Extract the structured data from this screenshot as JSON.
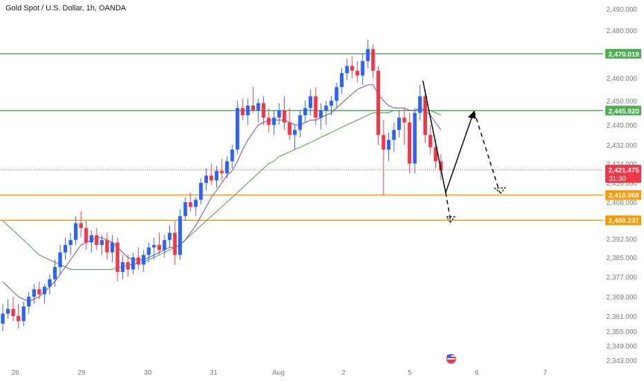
{
  "header": {
    "symbol_title": "Gold Spot / U.S. Dollar, 1h, OANDA"
  },
  "colors": {
    "bull": "#2962ff",
    "bear": "#f23645",
    "level_green": "#4caf50",
    "level_orange": "#ff9800",
    "ma_fast": "#7b3fb8",
    "ma_slow": "#43a047",
    "price_line": "#f23645",
    "axis_text": "#787b86"
  },
  "chart_data": {
    "type": "candlestick",
    "title": "Gold Spot / U.S. Dollar, 1h, OANDA",
    "x_ticks": [
      "26",
      "29",
      "30",
      "31",
      "Aug",
      "2",
      "5",
      "6",
      "7"
    ],
    "y_ticks": [
      "2,490.000",
      "2,480.000",
      "2,470.000",
      "2,460.000",
      "2,450.000",
      "2,440.000",
      "2,432.000",
      "2,424.000",
      "2,416.000",
      "2,408.000",
      "2,400.000",
      "2,392.500",
      "2,385.000",
      "2,377.000",
      "2,369.000",
      "2,361.000",
      "2,355.000",
      "2,349.000",
      "2,343.000"
    ],
    "y_tick_values": [
      2490,
      2480,
      2470,
      2460,
      2450,
      2440,
      2432,
      2424,
      2416,
      2408,
      2400,
      2392.5,
      2385,
      2377,
      2369,
      2361,
      2355,
      2349,
      2343
    ],
    "horizontal_levels": [
      {
        "label": "2,470.019",
        "value": 2470.019,
        "color": "green"
      },
      {
        "label": "2,445.920",
        "value": 2445.92,
        "color": "green"
      },
      {
        "label": "2,410.968",
        "value": 2410.968,
        "color": "orange"
      },
      {
        "label": "2,400.237",
        "value": 2400.237,
        "color": "orange"
      }
    ],
    "current_price": {
      "label": "2,421.475",
      "value": 2421.475,
      "countdown": "31:30"
    },
    "candles": [
      [
        2358,
        2366,
        2355,
        2362
      ],
      [
        2362,
        2368,
        2360,
        2364
      ],
      [
        2364,
        2369,
        2359,
        2361
      ],
      [
        2361,
        2366,
        2356,
        2359
      ],
      [
        2359,
        2367,
        2357,
        2365
      ],
      [
        2365,
        2371,
        2362,
        2369
      ],
      [
        2369,
        2374,
        2366,
        2372
      ],
      [
        2372,
        2375,
        2368,
        2370
      ],
      [
        2370,
        2374,
        2366,
        2373
      ],
      [
        2373,
        2378,
        2370,
        2376
      ],
      [
        2376,
        2384,
        2373,
        2381
      ],
      [
        2381,
        2390,
        2378,
        2387
      ],
      [
        2387,
        2393,
        2384,
        2390
      ],
      [
        2390,
        2395,
        2386,
        2392
      ],
      [
        2392,
        2402,
        2390,
        2399
      ],
      [
        2399,
        2404,
        2393,
        2397
      ],
      [
        2397,
        2400,
        2388,
        2391
      ],
      [
        2391,
        2396,
        2387,
        2394
      ],
      [
        2394,
        2397,
        2388,
        2390
      ],
      [
        2390,
        2394,
        2386,
        2392
      ],
      [
        2392,
        2395,
        2384,
        2387
      ],
      [
        2387,
        2394,
        2383,
        2391
      ],
      [
        2391,
        2393,
        2375,
        2379
      ],
      [
        2379,
        2386,
        2376,
        2383
      ],
      [
        2383,
        2386,
        2377,
        2380
      ],
      [
        2380,
        2387,
        2378,
        2385
      ],
      [
        2385,
        2389,
        2380,
        2382
      ],
      [
        2382,
        2388,
        2379,
        2386
      ],
      [
        2386,
        2391,
        2383,
        2389
      ],
      [
        2389,
        2393,
        2384,
        2390
      ],
      [
        2390,
        2395,
        2386,
        2388
      ],
      [
        2388,
        2394,
        2385,
        2392
      ],
      [
        2392,
        2398,
        2389,
        2395
      ],
      [
        2395,
        2400,
        2382,
        2386
      ],
      [
        2386,
        2405,
        2384,
        2402
      ],
      [
        2402,
        2410,
        2400,
        2408
      ],
      [
        2408,
        2412,
        2404,
        2406
      ],
      [
        2406,
        2410,
        2402,
        2409
      ],
      [
        2409,
        2418,
        2407,
        2416
      ],
      [
        2416,
        2422,
        2413,
        2419
      ],
      [
        2419,
        2424,
        2415,
        2417
      ],
      [
        2417,
        2423,
        2414,
        2421
      ],
      [
        2421,
        2426,
        2417,
        2420
      ],
      [
        2420,
        2427,
        2418,
        2425
      ],
      [
        2425,
        2432,
        2422,
        2430
      ],
      [
        2430,
        2450,
        2428,
        2447
      ],
      [
        2447,
        2451,
        2442,
        2444
      ],
      [
        2444,
        2451,
        2440,
        2448
      ],
      [
        2448,
        2456,
        2445,
        2446
      ],
      [
        2446,
        2451,
        2441,
        2449
      ],
      [
        2449,
        2452,
        2440,
        2443
      ],
      [
        2443,
        2447,
        2437,
        2440
      ],
      [
        2440,
        2446,
        2436,
        2443
      ],
      [
        2443,
        2449,
        2440,
        2446
      ],
      [
        2446,
        2452,
        2438,
        2441
      ],
      [
        2441,
        2447,
        2434,
        2436
      ],
      [
        2436,
        2440,
        2430,
        2438
      ],
      [
        2438,
        2446,
        2435,
        2444
      ],
      [
        2444,
        2450,
        2441,
        2447
      ],
      [
        2447,
        2455,
        2444,
        2452
      ],
      [
        2452,
        2456,
        2440,
        2443
      ],
      [
        2443,
        2449,
        2438,
        2446
      ],
      [
        2446,
        2450,
        2440,
        2448
      ],
      [
        2448,
        2452,
        2444,
        2450
      ],
      [
        2450,
        2458,
        2447,
        2456
      ],
      [
        2456,
        2464,
        2453,
        2462
      ],
      [
        2462,
        2468,
        2459,
        2465
      ],
      [
        2465,
        2469,
        2460,
        2463
      ],
      [
        2463,
        2467,
        2458,
        2461
      ],
      [
        2461,
        2470,
        2457,
        2467
      ],
      [
        2467,
        2476,
        2464,
        2472
      ],
      [
        2472,
        2474,
        2460,
        2463
      ],
      [
        2463,
        2465,
        2432,
        2436
      ],
      [
        2436,
        2442,
        2411,
        2430
      ],
      [
        2430,
        2437,
        2425,
        2434
      ],
      [
        2434,
        2441,
        2429,
        2438
      ],
      [
        2438,
        2446,
        2435,
        2443
      ],
      [
        2443,
        2447,
        2432,
        2441
      ],
      [
        2441,
        2445,
        2420,
        2424
      ],
      [
        2424,
        2447,
        2420,
        2445
      ],
      [
        2445,
        2457,
        2442,
        2452
      ],
      [
        2452,
        2455,
        2433,
        2436
      ],
      [
        2436,
        2440,
        2428,
        2431
      ],
      [
        2431,
        2434,
        2422,
        2425
      ],
      [
        2425,
        2428,
        2417,
        2421
      ]
    ],
    "ma_fast": [
      2375,
      2373,
      2371,
      2369,
      2368,
      2367,
      2368,
      2369,
      2371,
      2373,
      2375,
      2378,
      2381,
      2384,
      2387,
      2390,
      2391,
      2392,
      2393,
      2393,
      2392,
      2391,
      2389,
      2387,
      2385,
      2384,
      2384,
      2384,
      2385,
      2386,
      2387,
      2388,
      2389,
      2389,
      2390,
      2392,
      2395,
      2398,
      2402,
      2406,
      2410,
      2413,
      2416,
      2419,
      2421,
      2425,
      2430,
      2434,
      2437,
      2440,
      2441,
      2442,
      2442,
      2442,
      2442,
      2441,
      2440,
      2440,
      2441,
      2442,
      2442,
      2443,
      2444,
      2445,
      2447,
      2449,
      2451,
      2453,
      2455,
      2456,
      2457,
      2457,
      2453,
      2450,
      2448,
      2447,
      2447,
      2447,
      2446,
      2446,
      2447,
      2446,
      2444,
      2441,
      2438
    ],
    "ma_slow": [
      2400,
      2398,
      2396,
      2394,
      2392,
      2390,
      2388,
      2386,
      2385,
      2384,
      2383,
      2382,
      2381,
      2380,
      2380,
      2380,
      2380,
      2380,
      2380,
      2380,
      2380,
      2380,
      2381,
      2381,
      2382,
      2382,
      2383,
      2383,
      2384,
      2385,
      2386,
      2387,
      2388,
      2389,
      2390,
      2392,
      2394,
      2396,
      2398,
      2400,
      2402,
      2404,
      2406,
      2408,
      2410,
      2412,
      2414,
      2416,
      2418,
      2420,
      2422,
      2424,
      2425,
      2427,
      2428,
      2429,
      2430,
      2431,
      2432,
      2433,
      2434,
      2435,
      2436,
      2437,
      2438,
      2439,
      2440,
      2441,
      2442,
      2443,
      2444,
      2445,
      2445,
      2445,
      2445,
      2446,
      2446,
      2446,
      2446,
      2446,
      2446,
      2446,
      2446,
      2445,
      2444
    ],
    "projection_solid": [
      [
        2457,
        2457
      ],
      [
        2445.92,
        2400
      ]
    ],
    "projection_note": "drawn arrows are annotation shapes"
  }
}
